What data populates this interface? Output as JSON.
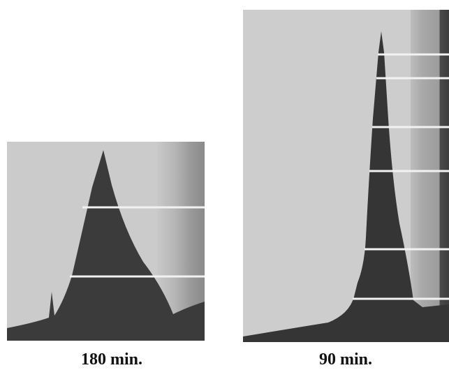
{
  "captions": [
    "180 min.",
    "90 min."
  ]
}
